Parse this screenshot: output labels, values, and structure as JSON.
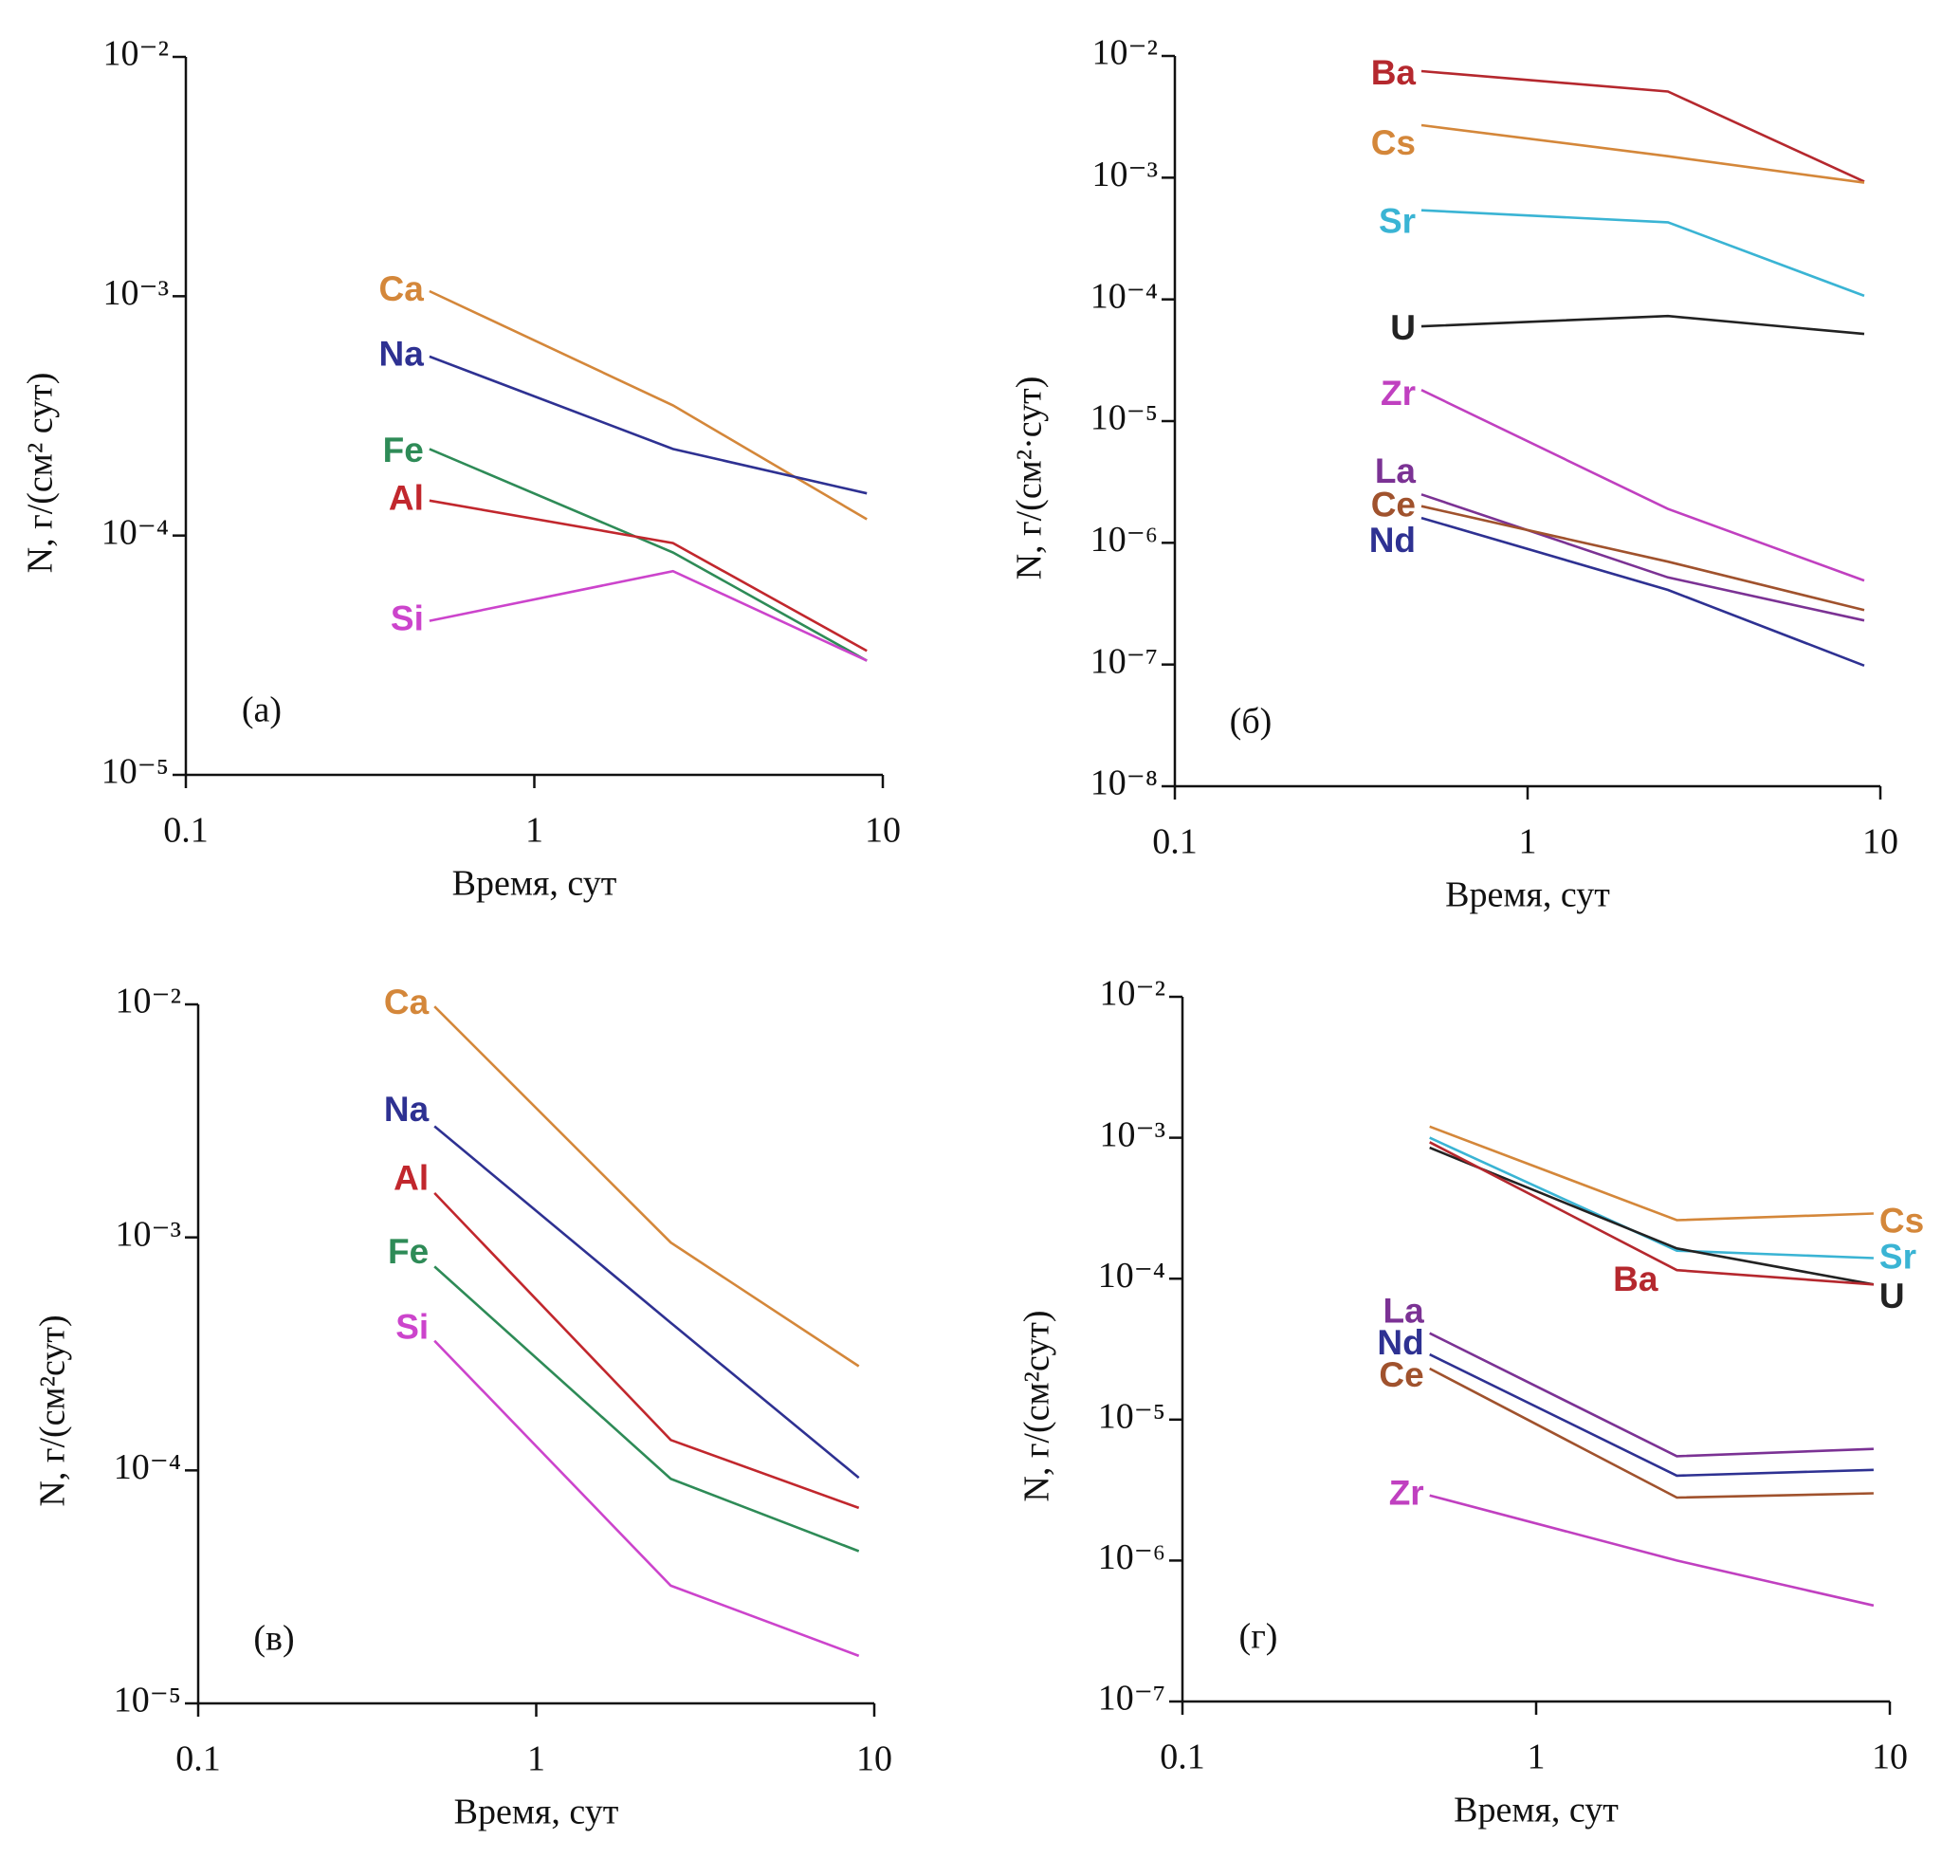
{
  "chart_data": [
    {
      "type": "line",
      "panel_label": "(а)",
      "xlabel": "Время, сут",
      "ylabel": "N, г/(см² сут)",
      "log_x": true,
      "log_y": true,
      "x": [
        0.5,
        2.5,
        9
      ],
      "xlim": [
        0.1,
        10
      ],
      "xticks": [
        0.1,
        1,
        10
      ],
      "ylim": [
        1e-05,
        0.01
      ],
      "yticks": [
        {
          "value": 1e-05,
          "label": "10⁻⁵"
        },
        {
          "value": 0.0001,
          "label": "10⁻⁴"
        },
        {
          "value": 0.001,
          "label": "10⁻³"
        },
        {
          "value": 0.01,
          "label": "10⁻²"
        }
      ],
      "series": [
        {
          "name": "Ca",
          "color": "#d4873a",
          "values": [
            0.00105,
            0.00035,
            0.000117
          ]
        },
        {
          "name": "Na",
          "color": "#2e3192",
          "values": [
            0.00056,
            0.00023,
            0.00015
          ]
        },
        {
          "name": "Fe",
          "color": "#2e8b57",
          "values": [
            0.00023,
            8.5e-05,
            3e-05
          ]
        },
        {
          "name": "Al",
          "color": "#c1272d",
          "values": [
            0.00014,
            9.3e-05,
            3.3e-05
          ]
        },
        {
          "name": "Si",
          "color": "#cc44cc",
          "values": [
            4.4e-05,
            7.1e-05,
            3e-05
          ]
        }
      ]
    },
    {
      "type": "line",
      "panel_label": "(б)",
      "xlabel": "Время, сут",
      "ylabel": "N, г/(см²·сут)",
      "log_x": true,
      "log_y": true,
      "x": [
        0.5,
        2.5,
        9
      ],
      "xlim": [
        0.1,
        10
      ],
      "xticks": [
        0.1,
        1,
        10
      ],
      "ylim": [
        1e-08,
        0.01
      ],
      "yticks": [
        {
          "value": 1e-08,
          "label": "10⁻⁸"
        },
        {
          "value": 1e-07,
          "label": "10⁻⁷"
        },
        {
          "value": 1e-06,
          "label": "10⁻⁶"
        },
        {
          "value": 1e-05,
          "label": "10⁻⁵"
        },
        {
          "value": 0.0001,
          "label": "10⁻⁴"
        },
        {
          "value": 0.001,
          "label": "10⁻³"
        },
        {
          "value": 0.01,
          "label": "10⁻²"
        }
      ],
      "series": [
        {
          "name": "Ba",
          "color": "#b5282e",
          "values": [
            0.0075,
            0.0051,
            0.00093
          ]
        },
        {
          "name": "Cs",
          "color": "#d4873a",
          "values": [
            0.0027,
            0.0015,
            0.00091
          ]
        },
        {
          "name": "Sr",
          "color": "#3ab4d4",
          "values": [
            0.00054,
            0.00043,
            0.000107
          ]
        },
        {
          "name": "U",
          "color": "#222222",
          "values": [
            6e-05,
            7.3e-05,
            5.2e-05
          ]
        },
        {
          "name": "Zr",
          "color": "#c040c0",
          "values": [
            1.8e-05,
            1.9e-06,
            4.9e-07
          ]
        },
        {
          "name": "La",
          "color": "#7b3294",
          "values": [
            2.5e-06,
            5.2e-07,
            2.3e-07
          ]
        },
        {
          "name": "Ce",
          "color": "#a0522d",
          "values": [
            2e-06,
            7e-07,
            2.8e-07
          ]
        },
        {
          "name": "Nd",
          "color": "#2e3192",
          "values": [
            1.6e-06,
            4.1e-07,
            9.8e-08
          ]
        }
      ]
    },
    {
      "type": "line",
      "panel_label": "(в)",
      "xlabel": "Время, сут",
      "ylabel": "N, г/(см²сут)",
      "log_x": true,
      "log_y": true,
      "x": [
        0.5,
        2.5,
        9
      ],
      "xlim": [
        0.1,
        10
      ],
      "xticks": [
        0.1,
        1,
        10
      ],
      "ylim": [
        1e-05,
        0.01
      ],
      "yticks": [
        {
          "value": 1e-05,
          "label": "10⁻⁵"
        },
        {
          "value": 0.0001,
          "label": "10⁻⁴"
        },
        {
          "value": 0.001,
          "label": "10⁻³"
        },
        {
          "value": 0.01,
          "label": "10⁻²"
        }
      ],
      "series": [
        {
          "name": "Ca",
          "color": "#d4873a",
          "values": [
            0.0098,
            0.00095,
            0.00028
          ]
        },
        {
          "name": "Na",
          "color": "#2e3192",
          "values": [
            0.003,
            0.00043,
            9.3e-05
          ]
        },
        {
          "name": "Al",
          "color": "#c1272d",
          "values": [
            0.00155,
            0.000135,
            6.9e-05
          ]
        },
        {
          "name": "Fe",
          "color": "#2e8b57",
          "values": [
            0.00075,
            9.2e-05,
            4.5e-05
          ]
        },
        {
          "name": "Si",
          "color": "#cc44cc",
          "values": [
            0.00036,
            3.2e-05,
            1.6e-05
          ]
        }
      ]
    },
    {
      "type": "line",
      "panel_label": "(г)",
      "xlabel": "Время, сут",
      "ylabel": "N, г/(см²сут)",
      "log_x": true,
      "log_y": true,
      "x": [
        0.5,
        2.5,
        9
      ],
      "xlim": [
        0.1,
        10
      ],
      "xticks": [
        0.1,
        1,
        10
      ],
      "ylim": [
        1e-07,
        0.01
      ],
      "yticks": [
        {
          "value": 1e-07,
          "label": "10⁻⁷"
        },
        {
          "value": 1e-06,
          "label": "10⁻⁶"
        },
        {
          "value": 1e-05,
          "label": "10⁻⁵"
        },
        {
          "value": 0.0001,
          "label": "10⁻⁴"
        },
        {
          "value": 0.001,
          "label": "10⁻³"
        },
        {
          "value": 0.01,
          "label": "10⁻²"
        }
      ],
      "series": [
        {
          "name": "Cs",
          "color": "#d4873a",
          "values": [
            0.0012,
            0.00026,
            0.00029
          ]
        },
        {
          "name": "Sr",
          "color": "#3ab4d4",
          "values": [
            0.001,
            0.000158,
            0.00014
          ]
        },
        {
          "name": "U",
          "color": "#222222",
          "values": [
            0.00085,
            0.000164,
            9.1e-05
          ]
        },
        {
          "name": "Ba",
          "color": "#b5282e",
          "values": [
            0.00093,
            0.000115,
            9.1e-05
          ]
        },
        {
          "name": "La",
          "color": "#7b3294",
          "values": [
            4.1e-05,
            5.5e-06,
            6.2e-06
          ]
        },
        {
          "name": "Nd",
          "color": "#2e3192",
          "values": [
            2.9e-05,
            4e-06,
            4.4e-06
          ]
        },
        {
          "name": "Ce",
          "color": "#a0522d",
          "values": [
            2.3e-05,
            2.8e-06,
            3e-06
          ]
        },
        {
          "name": "Zr",
          "color": "#c040c0",
          "values": [
            2.9e-06,
            1e-06,
            4.8e-07
          ]
        }
      ]
    }
  ]
}
